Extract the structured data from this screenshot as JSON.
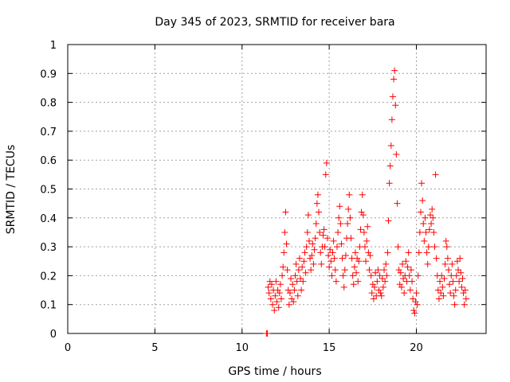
{
  "chart_data": {
    "type": "scatter",
    "title": "Day 345 of 2023, SRMTID for receiver bara",
    "xlabel": "GPS time / hours",
    "ylabel": "SRMTID / TECUs",
    "xlim": [
      0,
      24
    ],
    "ylim": [
      0,
      1
    ],
    "xticks": [
      0,
      5,
      10,
      15,
      20
    ],
    "yticks": [
      0,
      0.1,
      0.2,
      0.3,
      0.4,
      0.5,
      0.6,
      0.7,
      0.8,
      0.9,
      1
    ],
    "x_tick_labels": [
      "0",
      "5",
      "10",
      "15",
      "20"
    ],
    "y_tick_labels": [
      "0",
      "0.1",
      "0.2",
      "0.3",
      "0.4",
      "0.5",
      "0.6",
      "0.7",
      "0.8",
      "0.9",
      "1"
    ],
    "grid": true,
    "marker": "+",
    "color": "#ff0000",
    "series": [
      {
        "name": "SRMTID",
        "points": [
          [
            11.4,
            0.0
          ],
          [
            11.45,
            0.0
          ],
          [
            11.5,
            0.16
          ],
          [
            11.55,
            0.14
          ],
          [
            11.6,
            0.18
          ],
          [
            11.65,
            0.12
          ],
          [
            11.7,
            0.17
          ],
          [
            11.75,
            0.1
          ],
          [
            11.8,
            0.15
          ],
          [
            11.85,
            0.08
          ],
          [
            11.9,
            0.13
          ],
          [
            11.95,
            0.18
          ],
          [
            12.0,
            0.11
          ],
          [
            12.05,
            0.15
          ],
          [
            12.1,
            0.09
          ],
          [
            12.15,
            0.14
          ],
          [
            12.2,
            0.17
          ],
          [
            12.25,
            0.12
          ],
          [
            12.3,
            0.2
          ],
          [
            12.35,
            0.23
          ],
          [
            12.4,
            0.28
          ],
          [
            12.45,
            0.35
          ],
          [
            12.5,
            0.42
          ],
          [
            12.55,
            0.31
          ],
          [
            12.6,
            0.22
          ],
          [
            12.65,
            0.15
          ],
          [
            12.7,
            0.1
          ],
          [
            12.75,
            0.14
          ],
          [
            12.8,
            0.19
          ],
          [
            12.85,
            0.12
          ],
          [
            12.9,
            0.17
          ],
          [
            12.95,
            0.11
          ],
          [
            13.0,
            0.15
          ],
          [
            13.05,
            0.2
          ],
          [
            13.1,
            0.24
          ],
          [
            13.15,
            0.18
          ],
          [
            13.2,
            0.13
          ],
          [
            13.25,
            0.22
          ],
          [
            13.3,
            0.26
          ],
          [
            13.35,
            0.19
          ],
          [
            13.4,
            0.15
          ],
          [
            13.45,
            0.23
          ],
          [
            13.5,
            0.18
          ],
          [
            13.55,
            0.25
          ],
          [
            13.6,
            0.28
          ],
          [
            13.65,
            0.21
          ],
          [
            13.7,
            0.3
          ],
          [
            13.75,
            0.35
          ],
          [
            13.8,
            0.41
          ],
          [
            13.85,
            0.32
          ],
          [
            13.9,
            0.26
          ],
          [
            13.95,
            0.22
          ],
          [
            14.0,
            0.27
          ],
          [
            14.05,
            0.31
          ],
          [
            14.1,
            0.24
          ],
          [
            14.15,
            0.29
          ],
          [
            14.2,
            0.33
          ],
          [
            14.25,
            0.38
          ],
          [
            14.3,
            0.45
          ],
          [
            14.35,
            0.48
          ],
          [
            14.4,
            0.42
          ],
          [
            14.45,
            0.35
          ],
          [
            14.5,
            0.28
          ],
          [
            14.55,
            0.24
          ],
          [
            14.6,
            0.3
          ],
          [
            14.65,
            0.34
          ],
          [
            14.7,
            0.36
          ],
          [
            14.75,
            0.3
          ],
          [
            14.8,
            0.55
          ],
          [
            14.85,
            0.59
          ],
          [
            14.9,
            0.33
          ],
          [
            14.95,
            0.27
          ],
          [
            15.0,
            0.23
          ],
          [
            15.05,
            0.29
          ],
          [
            15.1,
            0.25
          ],
          [
            15.15,
            0.2
          ],
          [
            15.2,
            0.28
          ],
          [
            15.25,
            0.32
          ],
          [
            15.3,
            0.26
          ],
          [
            15.35,
            0.22
          ],
          [
            15.4,
            0.18
          ],
          [
            15.45,
            0.3
          ],
          [
            15.5,
            0.35
          ],
          [
            15.55,
            0.4
          ],
          [
            15.6,
            0.44
          ],
          [
            15.65,
            0.38
          ],
          [
            15.7,
            0.31
          ],
          [
            15.75,
            0.26
          ],
          [
            15.8,
            0.2
          ],
          [
            15.85,
            0.16
          ],
          [
            15.9,
            0.22
          ],
          [
            15.95,
            0.27
          ],
          [
            16.0,
            0.33
          ],
          [
            16.05,
            0.38
          ],
          [
            16.1,
            0.43
          ],
          [
            16.15,
            0.48
          ],
          [
            16.2,
            0.4
          ],
          [
            16.25,
            0.33
          ],
          [
            16.3,
            0.26
          ],
          [
            16.35,
            0.2
          ],
          [
            16.4,
            0.17
          ],
          [
            16.45,
            0.23
          ],
          [
            16.5,
            0.28
          ],
          [
            16.55,
            0.21
          ],
          [
            16.6,
            0.26
          ],
          [
            16.65,
            0.18
          ],
          [
            16.7,
            0.25
          ],
          [
            16.75,
            0.3
          ],
          [
            16.8,
            0.36
          ],
          [
            16.85,
            0.42
          ],
          [
            16.9,
            0.48
          ],
          [
            16.95,
            0.41
          ],
          [
            17.0,
            0.35
          ],
          [
            17.05,
            0.3
          ],
          [
            17.1,
            0.25
          ],
          [
            17.15,
            0.32
          ],
          [
            17.2,
            0.37
          ],
          [
            17.25,
            0.28
          ],
          [
            17.3,
            0.22
          ],
          [
            17.35,
            0.27
          ],
          [
            17.4,
            0.2
          ],
          [
            17.45,
            0.14
          ],
          [
            17.5,
            0.17
          ],
          [
            17.55,
            0.12
          ],
          [
            17.6,
            0.16
          ],
          [
            17.65,
            0.21
          ],
          [
            17.7,
            0.13
          ],
          [
            17.75,
            0.18
          ],
          [
            17.8,
            0.22
          ],
          [
            17.85,
            0.15
          ],
          [
            17.9,
            0.2
          ],
          [
            17.95,
            0.14
          ],
          [
            18.0,
            0.13
          ],
          [
            18.05,
            0.19
          ],
          [
            18.1,
            0.16
          ],
          [
            18.15,
            0.22
          ],
          [
            18.2,
            0.18
          ],
          [
            18.25,
            0.24
          ],
          [
            18.3,
            0.2
          ],
          [
            18.35,
            0.28
          ],
          [
            18.4,
            0.39
          ],
          [
            18.45,
            0.52
          ],
          [
            18.5,
            0.58
          ],
          [
            18.55,
            0.65
          ],
          [
            18.6,
            0.74
          ],
          [
            18.65,
            0.82
          ],
          [
            18.7,
            0.88
          ],
          [
            18.75,
            0.91
          ],
          [
            18.8,
            0.79
          ],
          [
            18.85,
            0.62
          ],
          [
            18.9,
            0.45
          ],
          [
            18.95,
            0.3
          ],
          [
            19.0,
            0.22
          ],
          [
            19.05,
            0.17
          ],
          [
            19.1,
            0.21
          ],
          [
            19.15,
            0.16
          ],
          [
            19.2,
            0.24
          ],
          [
            19.25,
            0.19
          ],
          [
            19.3,
            0.14
          ],
          [
            19.35,
            0.2
          ],
          [
            19.4,
            0.25
          ],
          [
            19.45,
            0.18
          ],
          [
            19.5,
            0.23
          ],
          [
            19.55,
            0.28
          ],
          [
            19.6,
            0.2
          ],
          [
            19.65,
            0.15
          ],
          [
            19.7,
            0.22
          ],
          [
            19.75,
            0.18
          ],
          [
            19.8,
            0.12
          ],
          [
            19.85,
            0.08
          ],
          [
            19.9,
            0.07
          ],
          [
            19.95,
            0.11
          ],
          [
            20.0,
            0.14
          ],
          [
            20.05,
            0.1
          ],
          [
            20.1,
            0.2
          ],
          [
            20.15,
            0.28
          ],
          [
            20.2,
            0.35
          ],
          [
            20.25,
            0.42
          ],
          [
            20.3,
            0.52
          ],
          [
            20.35,
            0.46
          ],
          [
            20.4,
            0.38
          ],
          [
            20.45,
            0.32
          ],
          [
            20.5,
            0.4
          ],
          [
            20.55,
            0.35
          ],
          [
            20.6,
            0.28
          ],
          [
            20.65,
            0.24
          ],
          [
            20.7,
            0.3
          ],
          [
            20.75,
            0.36
          ],
          [
            20.8,
            0.41
          ],
          [
            20.85,
            0.38
          ],
          [
            20.9,
            0.43
          ],
          [
            20.95,
            0.4
          ],
          [
            21.0,
            0.35
          ],
          [
            21.05,
            0.3
          ],
          [
            21.1,
            0.55
          ],
          [
            21.15,
            0.26
          ],
          [
            21.2,
            0.2
          ],
          [
            21.25,
            0.15
          ],
          [
            21.3,
            0.12
          ],
          [
            21.35,
            0.18
          ],
          [
            21.4,
            0.14
          ],
          [
            21.45,
            0.2
          ],
          [
            21.5,
            0.16
          ],
          [
            21.55,
            0.13
          ],
          [
            21.6,
            0.19
          ],
          [
            21.65,
            0.24
          ],
          [
            21.7,
            0.32
          ],
          [
            21.75,
            0.3
          ],
          [
            21.8,
            0.26
          ],
          [
            21.85,
            0.22
          ],
          [
            21.9,
            0.17
          ],
          [
            21.95,
            0.14
          ],
          [
            22.0,
            0.2
          ],
          [
            22.05,
            0.24
          ],
          [
            22.1,
            0.18
          ],
          [
            22.15,
            0.13
          ],
          [
            22.2,
            0.1
          ],
          [
            22.25,
            0.15
          ],
          [
            22.3,
            0.2
          ],
          [
            22.35,
            0.25
          ],
          [
            22.4,
            0.22
          ],
          [
            22.45,
            0.18
          ],
          [
            22.5,
            0.26
          ],
          [
            22.55,
            0.21
          ],
          [
            22.6,
            0.16
          ],
          [
            22.65,
            0.19
          ],
          [
            22.7,
            0.14
          ],
          [
            22.75,
            0.1
          ],
          [
            22.8,
            0.15
          ],
          [
            22.85,
            0.12
          ]
        ]
      }
    ]
  }
}
